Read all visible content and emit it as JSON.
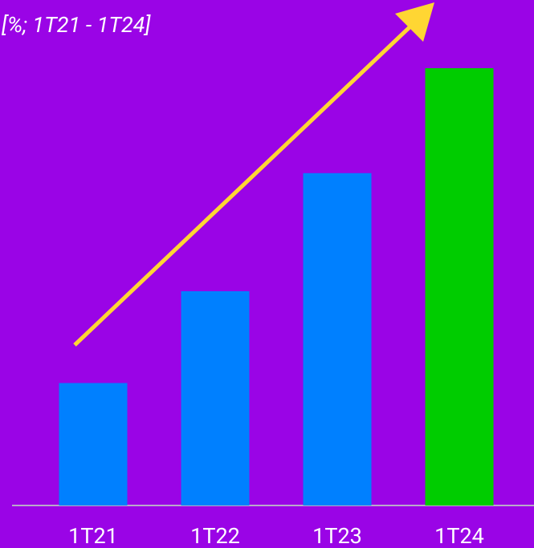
{
  "chart_data": {
    "type": "bar",
    "subtitle": "[%; 1T21 - 1T24]",
    "categories": [
      "1T21",
      "1T22",
      "1T23",
      "1T24"
    ],
    "values": [
      2.8,
      4.9,
      7.6,
      10
    ],
    "colors": [
      "#0080ff",
      "#0080ff",
      "#0080ff",
      "#00cc00"
    ],
    "ylim": [
      0,
      10
    ]
  }
}
